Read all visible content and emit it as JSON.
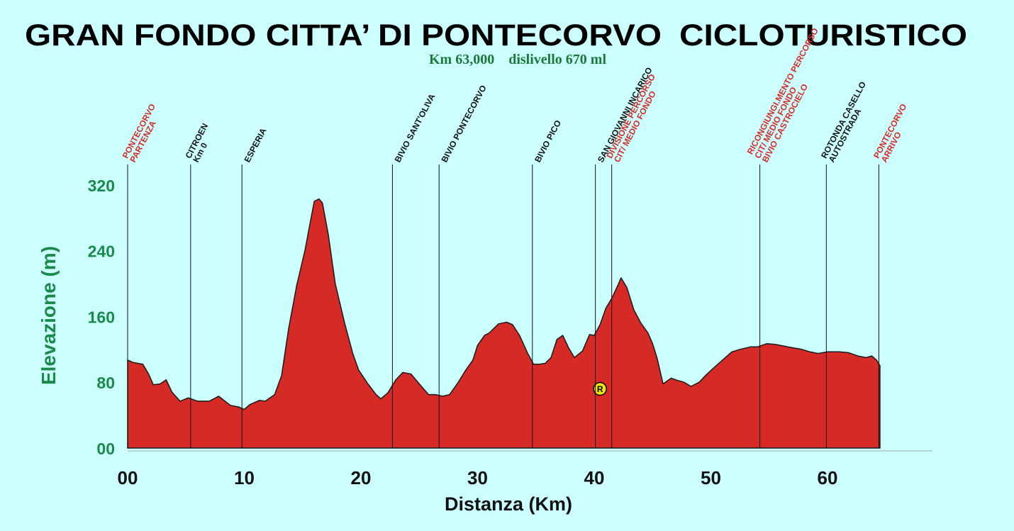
{
  "chart_data": {
    "type": "area",
    "title": "GRAN FONDO CITTA’ DI PONTECORVO",
    "title2": "CICLOTURISTICO",
    "subtitle": "Km 63,000    dislivello 670 ml",
    "xlabel": "Distanza (Km)",
    "ylabel": "Elevazione (m)",
    "xlim": [
      0,
      70
    ],
    "ylim": [
      0,
      340
    ],
    "x_ticks": [
      0,
      10,
      20,
      30,
      40,
      50,
      60
    ],
    "x_tick_labels": [
      "00",
      "10",
      "20",
      "30",
      "40",
      "50",
      "60"
    ],
    "y_ticks": [
      0,
      80,
      160,
      240,
      320
    ],
    "y_tick_labels": [
      "00",
      "80",
      "160",
      "240",
      "320"
    ],
    "colors": {
      "fill": "#d62a26",
      "stroke": "#1a1a1a",
      "red_text": "#d62a26",
      "black_text": "#111111",
      "axis_green": "#1a8a4a"
    },
    "series": [
      {
        "x": [
          0,
          0.5,
          1.3,
          1.8,
          2.2,
          2.8,
          3.3,
          3.8,
          4.5,
          5.2,
          6.0,
          7.0,
          7.8,
          8.8,
          9.5,
          10.0,
          10.5,
          11.3,
          11.8,
          12.6,
          13.2,
          13.8,
          14.5,
          15.2,
          15.7,
          16.0,
          16.4,
          16.7,
          17.2,
          17.8,
          18.6,
          19.3,
          19.8,
          20.6,
          21.3,
          21.7,
          22.3,
          23.0,
          23.6,
          24.3,
          25.0,
          25.8,
          26.4,
          27.0,
          27.6,
          28.3,
          29.0,
          29.6,
          30.0,
          30.6,
          31.0,
          31.8,
          32.5,
          33.0,
          33.6,
          34.3,
          34.8,
          35.3,
          35.8,
          36.3,
          36.8,
          37.3,
          37.8,
          38.3,
          39.0,
          39.6,
          40.0,
          40.5,
          41.0,
          41.5,
          42.0,
          42.3,
          42.8,
          43.4,
          44.0,
          44.6,
          45.0,
          45.4,
          45.9,
          46.6,
          47.2,
          47.7,
          48.3,
          49.0,
          49.6,
          50.2,
          51.0,
          51.8,
          52.5,
          53.4,
          54.0,
          54.8,
          55.5,
          56.3,
          57.0,
          57.8,
          58.5,
          59.2,
          60.0,
          61.0,
          61.8,
          62.6,
          63.3,
          63.8,
          64.2,
          64.5
        ],
        "y": [
          107,
          104,
          102,
          90,
          77,
          78,
          83,
          68,
          57,
          61,
          57,
          57,
          63,
          52,
          50,
          47,
          53,
          58,
          57,
          65,
          88,
          145,
          198,
          240,
          278,
          300,
          303,
          298,
          260,
          200,
          152,
          115,
          95,
          78,
          65,
          60,
          67,
          83,
          92,
          90,
          78,
          65,
          65,
          63,
          65,
          79,
          95,
          107,
          125,
          137,
          140,
          151,
          153,
          150,
          137,
          115,
          102,
          102,
          103,
          110,
          132,
          137,
          122,
          110,
          118,
          138,
          137,
          150,
          170,
          182,
          197,
          207,
          195,
          168,
          152,
          140,
          127,
          109,
          78,
          85,
          82,
          80,
          75,
          80,
          89,
          97,
          107,
          117,
          120,
          123,
          123,
          127,
          126,
          124,
          122,
          120,
          117,
          115,
          117,
          117,
          116,
          112,
          110,
          112,
          107,
          100
        ]
      }
    ],
    "waypoints": [
      {
        "x": 0,
        "lines": [
          "PONTECORVO",
          "PARTENZA"
        ],
        "color": "red"
      },
      {
        "x": 5.4,
        "lines": [
          "CITROEN",
          "Km 0"
        ],
        "color": "black"
      },
      {
        "x": 9.8,
        "lines": [
          "ESPERIA"
        ],
        "color": "black"
      },
      {
        "x": 22.7,
        "lines": [
          "BIVIO SANT'OLIVA"
        ],
        "color": "black"
      },
      {
        "x": 26.7,
        "lines": [
          "BIVIO  PONTECORVO"
        ],
        "color": "black"
      },
      {
        "x": 34.7,
        "lines": [
          "BIVIO  PICO"
        ],
        "color": "black"
      },
      {
        "x": 40.1,
        "lines": [
          "SAN GIOVANNI INCARICO"
        ],
        "color": "black"
      },
      {
        "x": 41.5,
        "lines": [
          "DIVISIONE PERCORSO",
          "CIT/ MEDIO FONDO"
        ],
        "color": "red"
      },
      {
        "x": 54.2,
        "lines": [
          "RICONGIUNGI.MENTO PERCORSO",
          "CIT/ MEDIO FONDO",
          "BIVIO CASTROCIELO"
        ],
        "color": "red"
      },
      {
        "x": 59.9,
        "lines": [
          "ROTONDA CASELLO",
          "AUTOSTRADA"
        ],
        "color": "black"
      },
      {
        "x": 64.4,
        "lines": [
          "PONTECORVO",
          "ARRIVO"
        ],
        "color": "red"
      }
    ],
    "marker": {
      "x": 40.5,
      "y": 72,
      "label": "R",
      "color": "#f2e600"
    }
  }
}
